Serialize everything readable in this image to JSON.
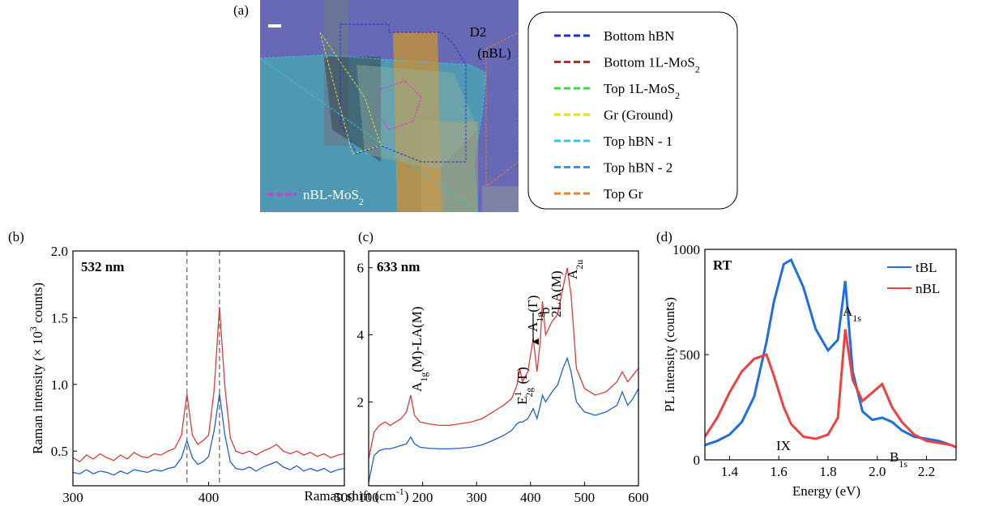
{
  "figure_labels": [
    "(a)",
    "(b)",
    "(c)",
    "(d)"
  ],
  "panel_a": {
    "sample": "D2",
    "sample_type": "(nBL)",
    "inset_legend": {
      "text": "nBL-MoS",
      "sub": "2",
      "color": "#e030d8"
    },
    "legend": [
      {
        "text": "Bottom hBN",
        "color": "#1a2fd0"
      },
      {
        "text": "Bottom 1L-MoS",
        "sub": "2",
        "color": "#d42020"
      },
      {
        "text": "Top 1L-MoS",
        "sub": "2",
        "color": "#30e040"
      },
      {
        "text": "Gr (Ground)",
        "color": "#e0e040"
      },
      {
        "text": "Top hBN - 1",
        "color": "#30c8e0"
      },
      {
        "text": "Top hBN - 2",
        "color": "#20a0f0"
      },
      {
        "text": "Top Gr",
        "color": "#f08020"
      }
    ]
  },
  "chart_data": [
    {
      "type": "line",
      "title": "532 nm",
      "x_label": {
        "text": "Raman shift (cm",
        "sup": "-1",
        "tail": ")"
      },
      "y_label": {
        "text": "Raman intensity (× 10",
        "sup": "3",
        "tail": " counts)"
      },
      "xlim": [
        300,
        500
      ],
      "xticks": [
        300,
        400,
        500
      ],
      "ylim": [
        0.24,
        2.0
      ],
      "yticks": [
        0.5,
        {
          "value": 1.0,
          "label": "1.0"
        },
        1.5,
        {
          "value": 2.0,
          "label": "2.0"
        }
      ],
      "vlines": [
        384,
        408
      ],
      "vline_color": "#808080",
      "x": [
        300,
        305,
        310,
        315,
        320,
        325,
        330,
        335,
        340,
        345,
        350,
        355,
        360,
        365,
        370,
        375,
        380,
        384,
        388,
        392,
        396,
        400,
        404,
        408,
        412,
        416,
        420,
        425,
        430,
        435,
        440,
        445,
        450,
        455,
        460,
        465,
        470,
        475,
        480,
        485,
        490,
        495,
        500
      ],
      "series": [
        {
          "name": "nBL",
          "color": "#e03a3a",
          "values": [
            0.45,
            0.42,
            0.47,
            0.44,
            0.48,
            0.45,
            0.43,
            0.47,
            0.44,
            0.49,
            0.46,
            0.45,
            0.48,
            0.47,
            0.5,
            0.52,
            0.62,
            0.93,
            0.62,
            0.55,
            0.58,
            0.62,
            0.95,
            1.58,
            0.98,
            0.6,
            0.5,
            0.48,
            0.5,
            0.47,
            0.5,
            0.52,
            0.55,
            0.5,
            0.48,
            0.5,
            0.47,
            0.49,
            0.46,
            0.48,
            0.45,
            0.47,
            0.48
          ]
        },
        {
          "name": "tBL",
          "color": "#2060d0",
          "values": [
            0.34,
            0.33,
            0.36,
            0.33,
            0.35,
            0.34,
            0.32,
            0.35,
            0.33,
            0.36,
            0.35,
            0.34,
            0.36,
            0.35,
            0.37,
            0.38,
            0.45,
            0.58,
            0.45,
            0.4,
            0.42,
            0.46,
            0.65,
            0.93,
            0.62,
            0.42,
            0.37,
            0.36,
            0.38,
            0.35,
            0.38,
            0.4,
            0.42,
            0.38,
            0.36,
            0.39,
            0.35,
            0.37,
            0.35,
            0.37,
            0.34,
            0.36,
            0.37
          ]
        }
      ]
    },
    {
      "type": "line",
      "title": "633 nm",
      "xlim": [
        100,
        600
      ],
      "xticks": [
        100,
        200,
        300,
        400,
        500,
        600
      ],
      "ylim": [
        -0.5,
        6.5
      ],
      "yticks": [
        2,
        4,
        6
      ],
      "annotations": [
        {
          "text": "A",
          "sub": "1g",
          "tail": "(M)-LA(M)"
        },
        {
          "text": "E",
          "sup": "1",
          "sub": "2g",
          "tail": " (Γ)"
        },
        {
          "text": "A",
          "sub": "1g",
          "tail": "(Γ)"
        },
        {
          "text": "b"
        },
        {
          "text": "2LA(M)"
        },
        {
          "text": "A",
          "sub": "2u"
        }
      ],
      "x": [
        100,
        110,
        120,
        130,
        140,
        150,
        160,
        170,
        178,
        185,
        195,
        210,
        230,
        250,
        270,
        290,
        310,
        330,
        350,
        365,
        375,
        380,
        385,
        395,
        405,
        412,
        418,
        422,
        428,
        440,
        450,
        460,
        468,
        475,
        485,
        500,
        520,
        540,
        560,
        570,
        580,
        590,
        600
      ],
      "series": [
        {
          "name": "nBL",
          "color": "#e03a3a",
          "values": [
            0.3,
            1.1,
            1.3,
            1.4,
            1.3,
            1.4,
            1.5,
            1.7,
            2.2,
            1.6,
            1.4,
            1.35,
            1.3,
            1.3,
            1.35,
            1.4,
            1.5,
            1.7,
            1.9,
            2.1,
            2.5,
            3.0,
            2.6,
            2.9,
            3.9,
            2.9,
            3.8,
            5.0,
            4.0,
            4.4,
            4.6,
            5.4,
            6.0,
            5.2,
            3.0,
            2.4,
            2.2,
            2.3,
            2.6,
            2.9,
            2.6,
            2.8,
            3.0
          ]
        },
        {
          "name": "tBL",
          "color": "#2060d0",
          "values": [
            -0.4,
            0.4,
            0.55,
            0.6,
            0.6,
            0.65,
            0.7,
            0.75,
            0.95,
            0.75,
            0.65,
            0.62,
            0.6,
            0.6,
            0.62,
            0.65,
            0.72,
            0.85,
            1.0,
            1.15,
            1.35,
            1.4,
            1.4,
            1.5,
            1.8,
            1.5,
            1.9,
            2.2,
            2.0,
            2.3,
            2.5,
            3.0,
            3.3,
            2.9,
            2.0,
            1.7,
            1.6,
            1.7,
            1.9,
            2.3,
            1.9,
            2.1,
            2.4
          ]
        }
      ]
    },
    {
      "type": "line",
      "title": "RT",
      "x_label": {
        "text": "Energy (eV)"
      },
      "y_label": {
        "text": "PL intensity (counts)"
      },
      "xlim": [
        1.3,
        2.32
      ],
      "xticks": [
        1.4,
        1.6,
        1.8,
        {
          "value": 2.0,
          "label": "2.0"
        },
        2.2
      ],
      "ylim": [
        0,
        1000
      ],
      "yticks": [
        0,
        500,
        1000
      ],
      "legend": true,
      "annotations": [
        {
          "text": "A",
          "sub": "1s"
        },
        {
          "text": "IX"
        },
        {
          "text": "B",
          "sub": "1s"
        }
      ],
      "x": [
        1.3,
        1.35,
        1.4,
        1.45,
        1.5,
        1.55,
        1.58,
        1.62,
        1.65,
        1.7,
        1.75,
        1.8,
        1.84,
        1.87,
        1.9,
        1.94,
        1.98,
        2.02,
        2.06,
        2.1,
        2.15,
        2.2,
        2.25,
        2.3,
        2.32
      ],
      "series": [
        {
          "name": "tBL",
          "color": "#1f6fe0",
          "values": [
            70,
            90,
            120,
            180,
            300,
            560,
            750,
            930,
            950,
            820,
            620,
            520,
            570,
            850,
            420,
            230,
            190,
            200,
            180,
            140,
            110,
            100,
            90,
            70,
            60
          ]
        },
        {
          "name": "nBL",
          "color": "#f04040",
          "values": [
            110,
            200,
            320,
            420,
            480,
            500,
            400,
            250,
            170,
            110,
            100,
            120,
            200,
            620,
            380,
            280,
            320,
            360,
            250,
            180,
            120,
            90,
            80,
            70,
            60
          ]
        }
      ]
    }
  ]
}
